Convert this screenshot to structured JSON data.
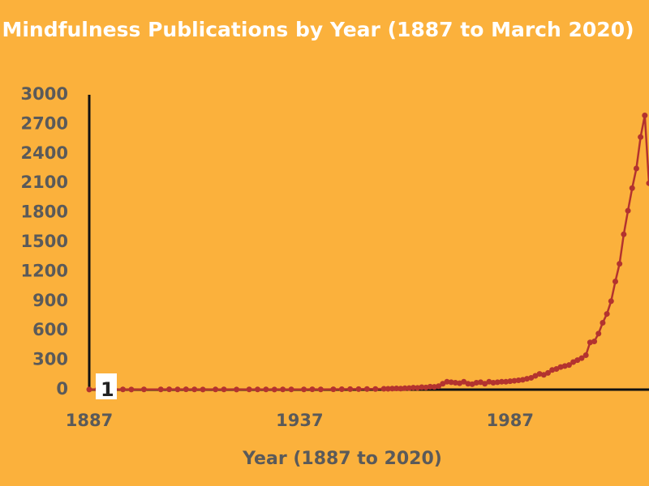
{
  "chart_data": {
    "type": "line",
    "title": "Mindfulness Publications by Year (1887 to March 2020)",
    "x_label": "Year (1887 to 2020)",
    "x": [
      1887,
      1889,
      1891,
      1893,
      1895,
      1897,
      1900,
      1904,
      1906,
      1908,
      1910,
      1912,
      1914,
      1917,
      1919,
      1922,
      1925,
      1927,
      1929,
      1931,
      1933,
      1935,
      1938,
      1940,
      1942,
      1945,
      1947,
      1949,
      1951,
      1953,
      1955,
      1957,
      1958,
      1959,
      1960,
      1961,
      1962,
      1963,
      1964,
      1965,
      1966,
      1967,
      1968,
      1969,
      1970,
      1971,
      1972,
      1973,
      1974,
      1975,
      1976,
      1977,
      1978,
      1979,
      1980,
      1981,
      1982,
      1983,
      1984,
      1985,
      1986,
      1987,
      1988,
      1989,
      1990,
      1991,
      1992,
      1993,
      1994,
      1995,
      1996,
      1997,
      1998,
      1999,
      2000,
      2001,
      2002,
      2003,
      2004,
      2005,
      2006,
      2007,
      2008,
      2009,
      2010,
      2011,
      2012,
      2013,
      2014,
      2015,
      2016,
      2017,
      2018,
      2019,
      2020
    ],
    "series": [
      {
        "name": "Publications",
        "color": "#b3332f",
        "values": [
          1,
          2,
          1,
          1,
          2,
          1,
          2,
          2,
          3,
          2,
          3,
          2,
          1,
          2,
          2,
          1,
          2,
          2,
          2,
          1,
          2,
          2,
          2,
          3,
          2,
          3,
          4,
          5,
          5,
          6,
          6,
          8,
          8,
          10,
          12,
          10,
          14,
          15,
          20,
          18,
          25,
          22,
          30,
          28,
          35,
          60,
          80,
          75,
          70,
          65,
          80,
          60,
          55,
          70,
          75,
          60,
          80,
          70,
          75,
          80,
          80,
          85,
          90,
          95,
          100,
          110,
          120,
          140,
          160,
          150,
          170,
          200,
          210,
          230,
          240,
          250,
          280,
          300,
          320,
          350,
          480,
          490,
          570,
          680,
          770,
          900,
          1100,
          1280,
          1580,
          1820,
          2050,
          2250,
          2570,
          2790,
          2100
        ]
      }
    ],
    "labeled_indices": [
      0,
      93
    ],
    "xlim": [
      1887,
      2020
    ],
    "xticks": [
      1887,
      1937,
      1987
    ],
    "ylim": [
      0,
      3000
    ],
    "yticks": [
      0,
      300,
      600,
      900,
      1200,
      1500,
      1800,
      2100,
      2400,
      2700,
      3000
    ]
  }
}
